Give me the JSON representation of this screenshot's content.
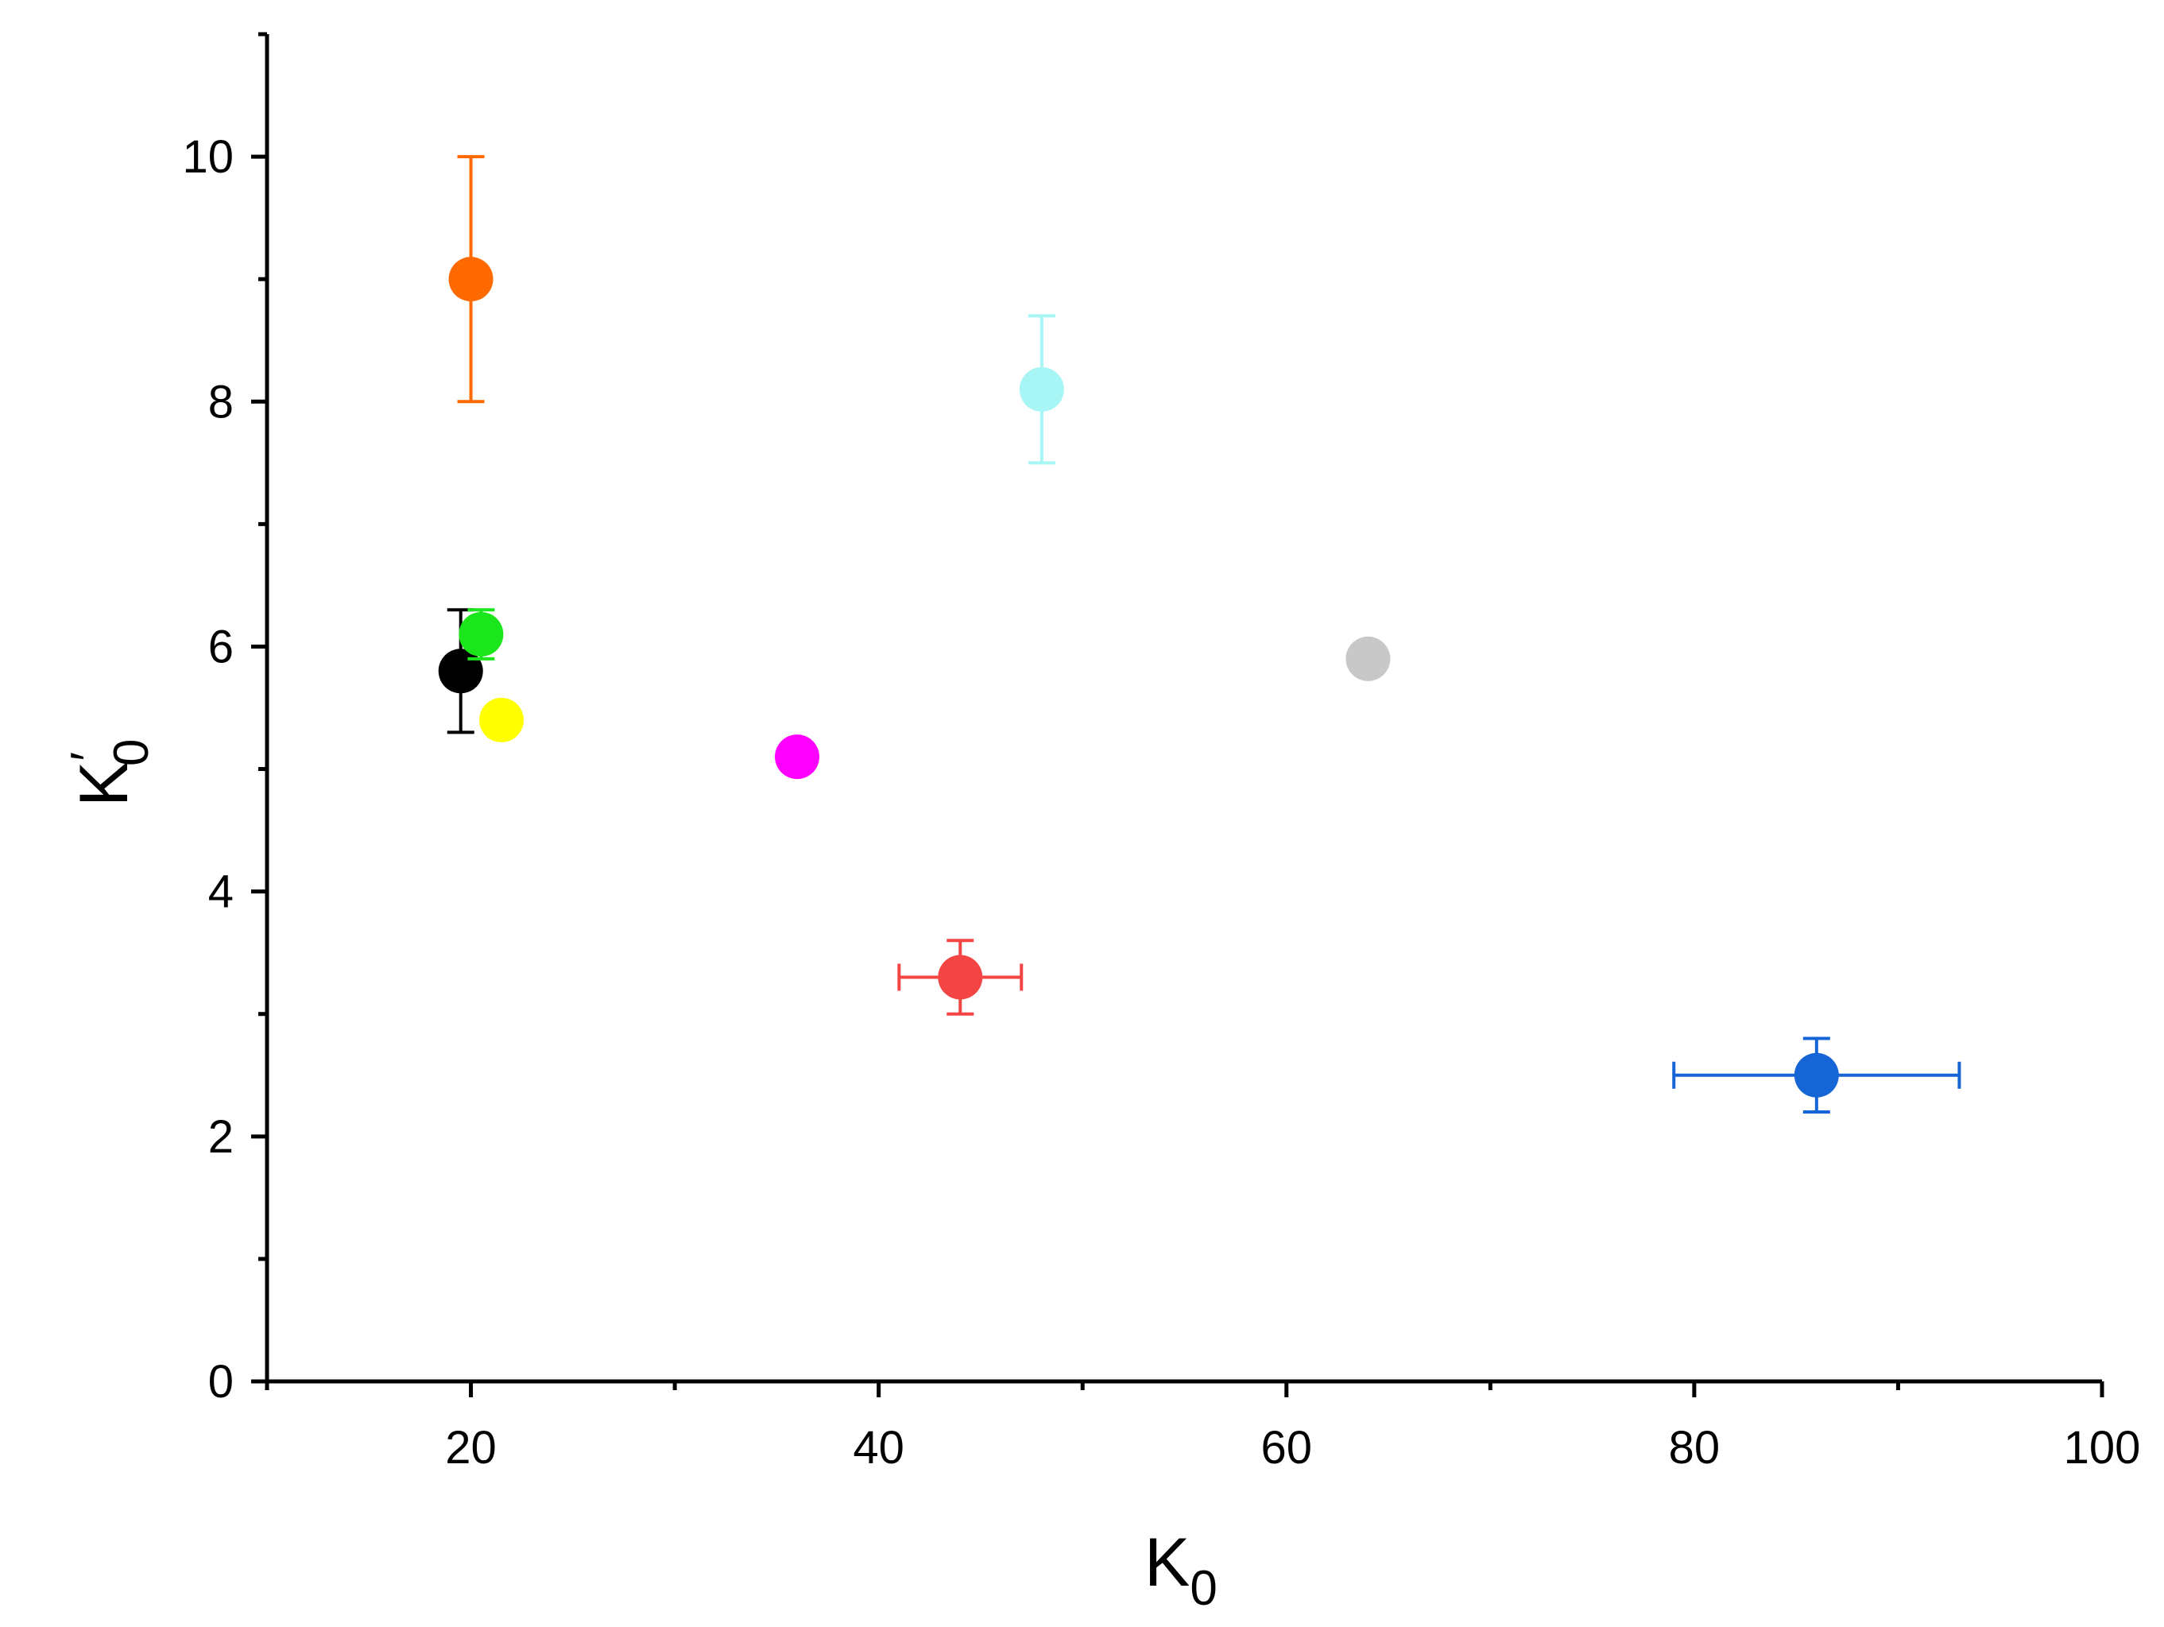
{
  "chart_data": {
    "type": "scatter",
    "title": "",
    "xlabel": {
      "main": "K",
      "sub": "0"
    },
    "ylabel": {
      "main": "K",
      "prime": "′",
      "sub": "0"
    },
    "xlim": [
      10,
      100
    ],
    "ylim": [
      0,
      11
    ],
    "x_ticks": [
      20,
      40,
      60,
      80,
      100
    ],
    "x_minor_ticks": [
      10,
      30,
      50,
      70,
      90
    ],
    "y_ticks": [
      0,
      2,
      4,
      6,
      8,
      10
    ],
    "y_minor_ticks": [
      1,
      3,
      5,
      7,
      9,
      11
    ],
    "grid": false,
    "legend": "none",
    "points": [
      {
        "x": 20.0,
        "y": 9.0,
        "color": "#ff6a00",
        "yerr": 1.0
      },
      {
        "x": 48.0,
        "y": 8.1,
        "color": "#a8f5f5",
        "yerr": 0.6
      },
      {
        "x": 19.5,
        "y": 5.8,
        "color": "#000000",
        "yerr": 0.5
      },
      {
        "x": 20.5,
        "y": 6.1,
        "color": "#1be61b",
        "yerr": 0.2
      },
      {
        "x": 21.5,
        "y": 5.4,
        "color": "#ffff00"
      },
      {
        "x": 36.0,
        "y": 5.1,
        "color": "#ff00ff"
      },
      {
        "x": 64.0,
        "y": 5.9,
        "color": "#c8c8c8"
      },
      {
        "x": 44.0,
        "y": 3.3,
        "color": "#f44545",
        "xerr": 3.0,
        "yerr": 0.3
      },
      {
        "x": 86.0,
        "y": 2.5,
        "color": "#1565d6",
        "xerr": 7.0,
        "yerr": 0.3
      }
    ]
  }
}
